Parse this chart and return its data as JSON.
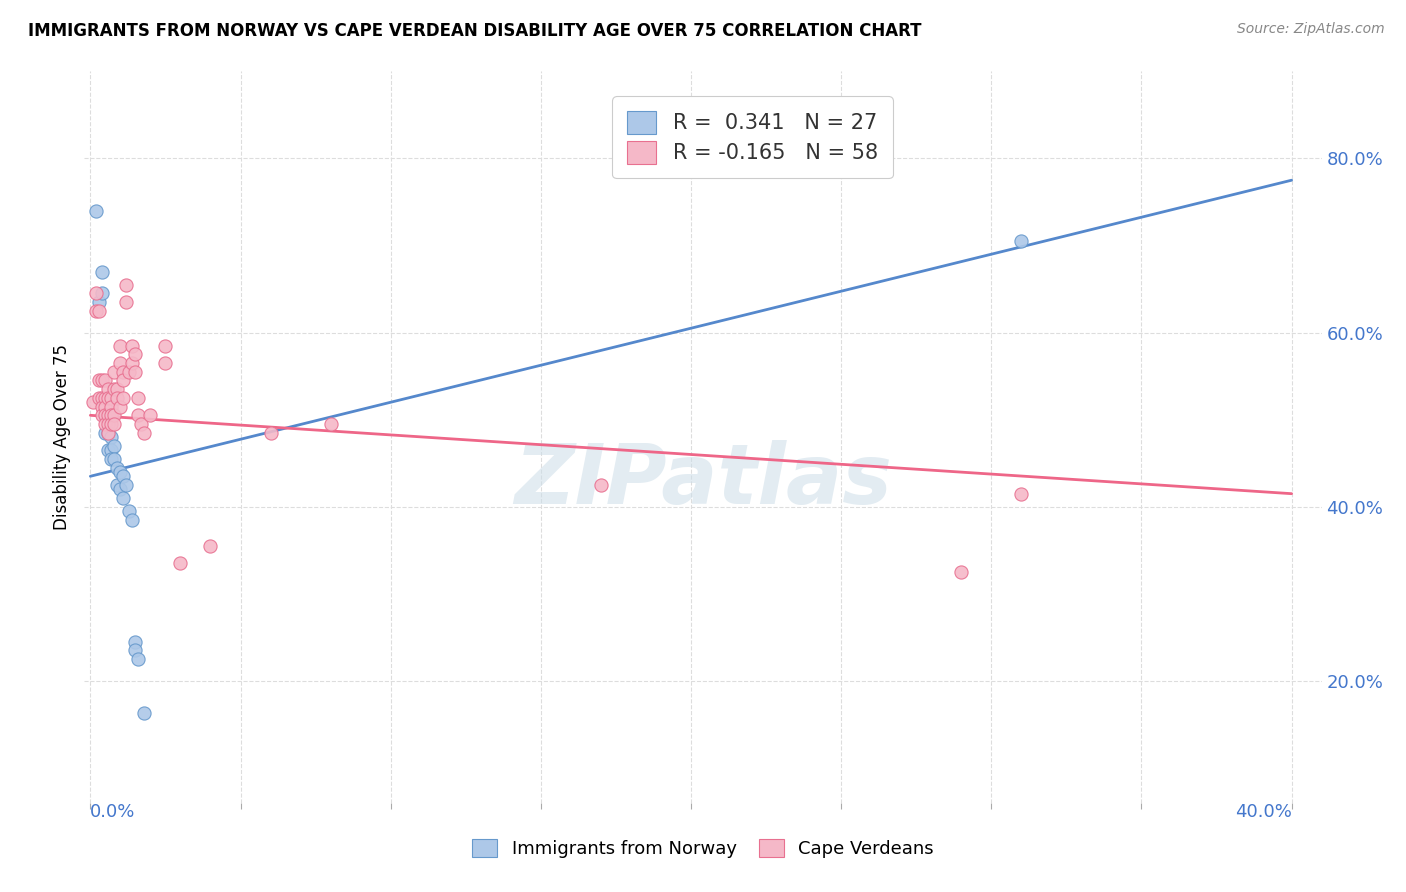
{
  "title": "IMMIGRANTS FROM NORWAY VS CAPE VERDEAN DISABILITY AGE OVER 75 CORRELATION CHART",
  "source": "Source: ZipAtlas.com",
  "ylabel": "Disability Age Over 75",
  "ytick_values": [
    0.2,
    0.4,
    0.6,
    0.8
  ],
  "xlim": [
    -0.002,
    0.41
  ],
  "ylim": [
    0.06,
    0.9
  ],
  "watermark": "ZIPatlas",
  "norway_fill_color": "#adc8e8",
  "norway_edge_color": "#6699cc",
  "cape_fill_color": "#f5b8c8",
  "cape_edge_color": "#e87090",
  "norway_line_color": "#5588cc",
  "cape_line_color": "#ee6688",
  "norway_scatter": [
    [
      0.002,
      0.74
    ],
    [
      0.003,
      0.635
    ],
    [
      0.004,
      0.67
    ],
    [
      0.004,
      0.645
    ],
    [
      0.005,
      0.505
    ],
    [
      0.005,
      0.485
    ],
    [
      0.006,
      0.485
    ],
    [
      0.006,
      0.465
    ],
    [
      0.007,
      0.48
    ],
    [
      0.007,
      0.465
    ],
    [
      0.007,
      0.455
    ],
    [
      0.008,
      0.47
    ],
    [
      0.008,
      0.455
    ],
    [
      0.009,
      0.445
    ],
    [
      0.009,
      0.425
    ],
    [
      0.01,
      0.44
    ],
    [
      0.01,
      0.42
    ],
    [
      0.011,
      0.435
    ],
    [
      0.011,
      0.41
    ],
    [
      0.012,
      0.425
    ],
    [
      0.013,
      0.395
    ],
    [
      0.014,
      0.385
    ],
    [
      0.015,
      0.245
    ],
    [
      0.015,
      0.235
    ],
    [
      0.016,
      0.225
    ],
    [
      0.018,
      0.163
    ],
    [
      0.31,
      0.705
    ]
  ],
  "cape_verde_scatter": [
    [
      0.001,
      0.52
    ],
    [
      0.002,
      0.645
    ],
    [
      0.002,
      0.625
    ],
    [
      0.003,
      0.625
    ],
    [
      0.003,
      0.545
    ],
    [
      0.003,
      0.525
    ],
    [
      0.004,
      0.545
    ],
    [
      0.004,
      0.525
    ],
    [
      0.004,
      0.515
    ],
    [
      0.004,
      0.505
    ],
    [
      0.005,
      0.545
    ],
    [
      0.005,
      0.525
    ],
    [
      0.005,
      0.515
    ],
    [
      0.005,
      0.505
    ],
    [
      0.005,
      0.495
    ],
    [
      0.006,
      0.535
    ],
    [
      0.006,
      0.525
    ],
    [
      0.006,
      0.505
    ],
    [
      0.006,
      0.495
    ],
    [
      0.006,
      0.485
    ],
    [
      0.007,
      0.525
    ],
    [
      0.007,
      0.515
    ],
    [
      0.007,
      0.505
    ],
    [
      0.007,
      0.495
    ],
    [
      0.008,
      0.555
    ],
    [
      0.008,
      0.535
    ],
    [
      0.008,
      0.505
    ],
    [
      0.008,
      0.495
    ],
    [
      0.009,
      0.535
    ],
    [
      0.009,
      0.525
    ],
    [
      0.01,
      0.585
    ],
    [
      0.01,
      0.565
    ],
    [
      0.01,
      0.515
    ],
    [
      0.011,
      0.555
    ],
    [
      0.011,
      0.545
    ],
    [
      0.011,
      0.525
    ],
    [
      0.012,
      0.655
    ],
    [
      0.012,
      0.635
    ],
    [
      0.013,
      0.555
    ],
    [
      0.014,
      0.585
    ],
    [
      0.014,
      0.565
    ],
    [
      0.015,
      0.575
    ],
    [
      0.015,
      0.555
    ],
    [
      0.016,
      0.525
    ],
    [
      0.016,
      0.505
    ],
    [
      0.017,
      0.495
    ],
    [
      0.018,
      0.485
    ],
    [
      0.02,
      0.505
    ],
    [
      0.025,
      0.585
    ],
    [
      0.025,
      0.565
    ],
    [
      0.03,
      0.335
    ],
    [
      0.04,
      0.355
    ],
    [
      0.06,
      0.485
    ],
    [
      0.08,
      0.495
    ],
    [
      0.17,
      0.425
    ],
    [
      0.29,
      0.325
    ],
    [
      0.31,
      0.415
    ]
  ],
  "norway_trendline": [
    [
      0.0,
      0.435
    ],
    [
      0.4,
      0.775
    ]
  ],
  "cape_verde_trendline": [
    [
      0.0,
      0.505
    ],
    [
      0.4,
      0.415
    ]
  ]
}
